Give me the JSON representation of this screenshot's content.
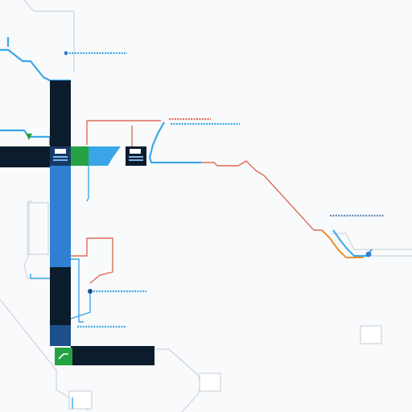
{
  "colors": {
    "dark_navy": "#0b1c2c",
    "route_blue": "#2f7fd3",
    "light_blue": "#3aa6e8",
    "accent_green": "#25a244",
    "route_red": "#e06a5a",
    "route_orange": "#e8922e",
    "gray_outline": "#cfd4da",
    "background": "#f9fafb"
  },
  "icons": {
    "left_station": "square-marker-icon",
    "mid_station": "square-marker-icon",
    "bottom_station": "arrow-marker-icon",
    "stop_marker": "dot-marker-icon"
  }
}
